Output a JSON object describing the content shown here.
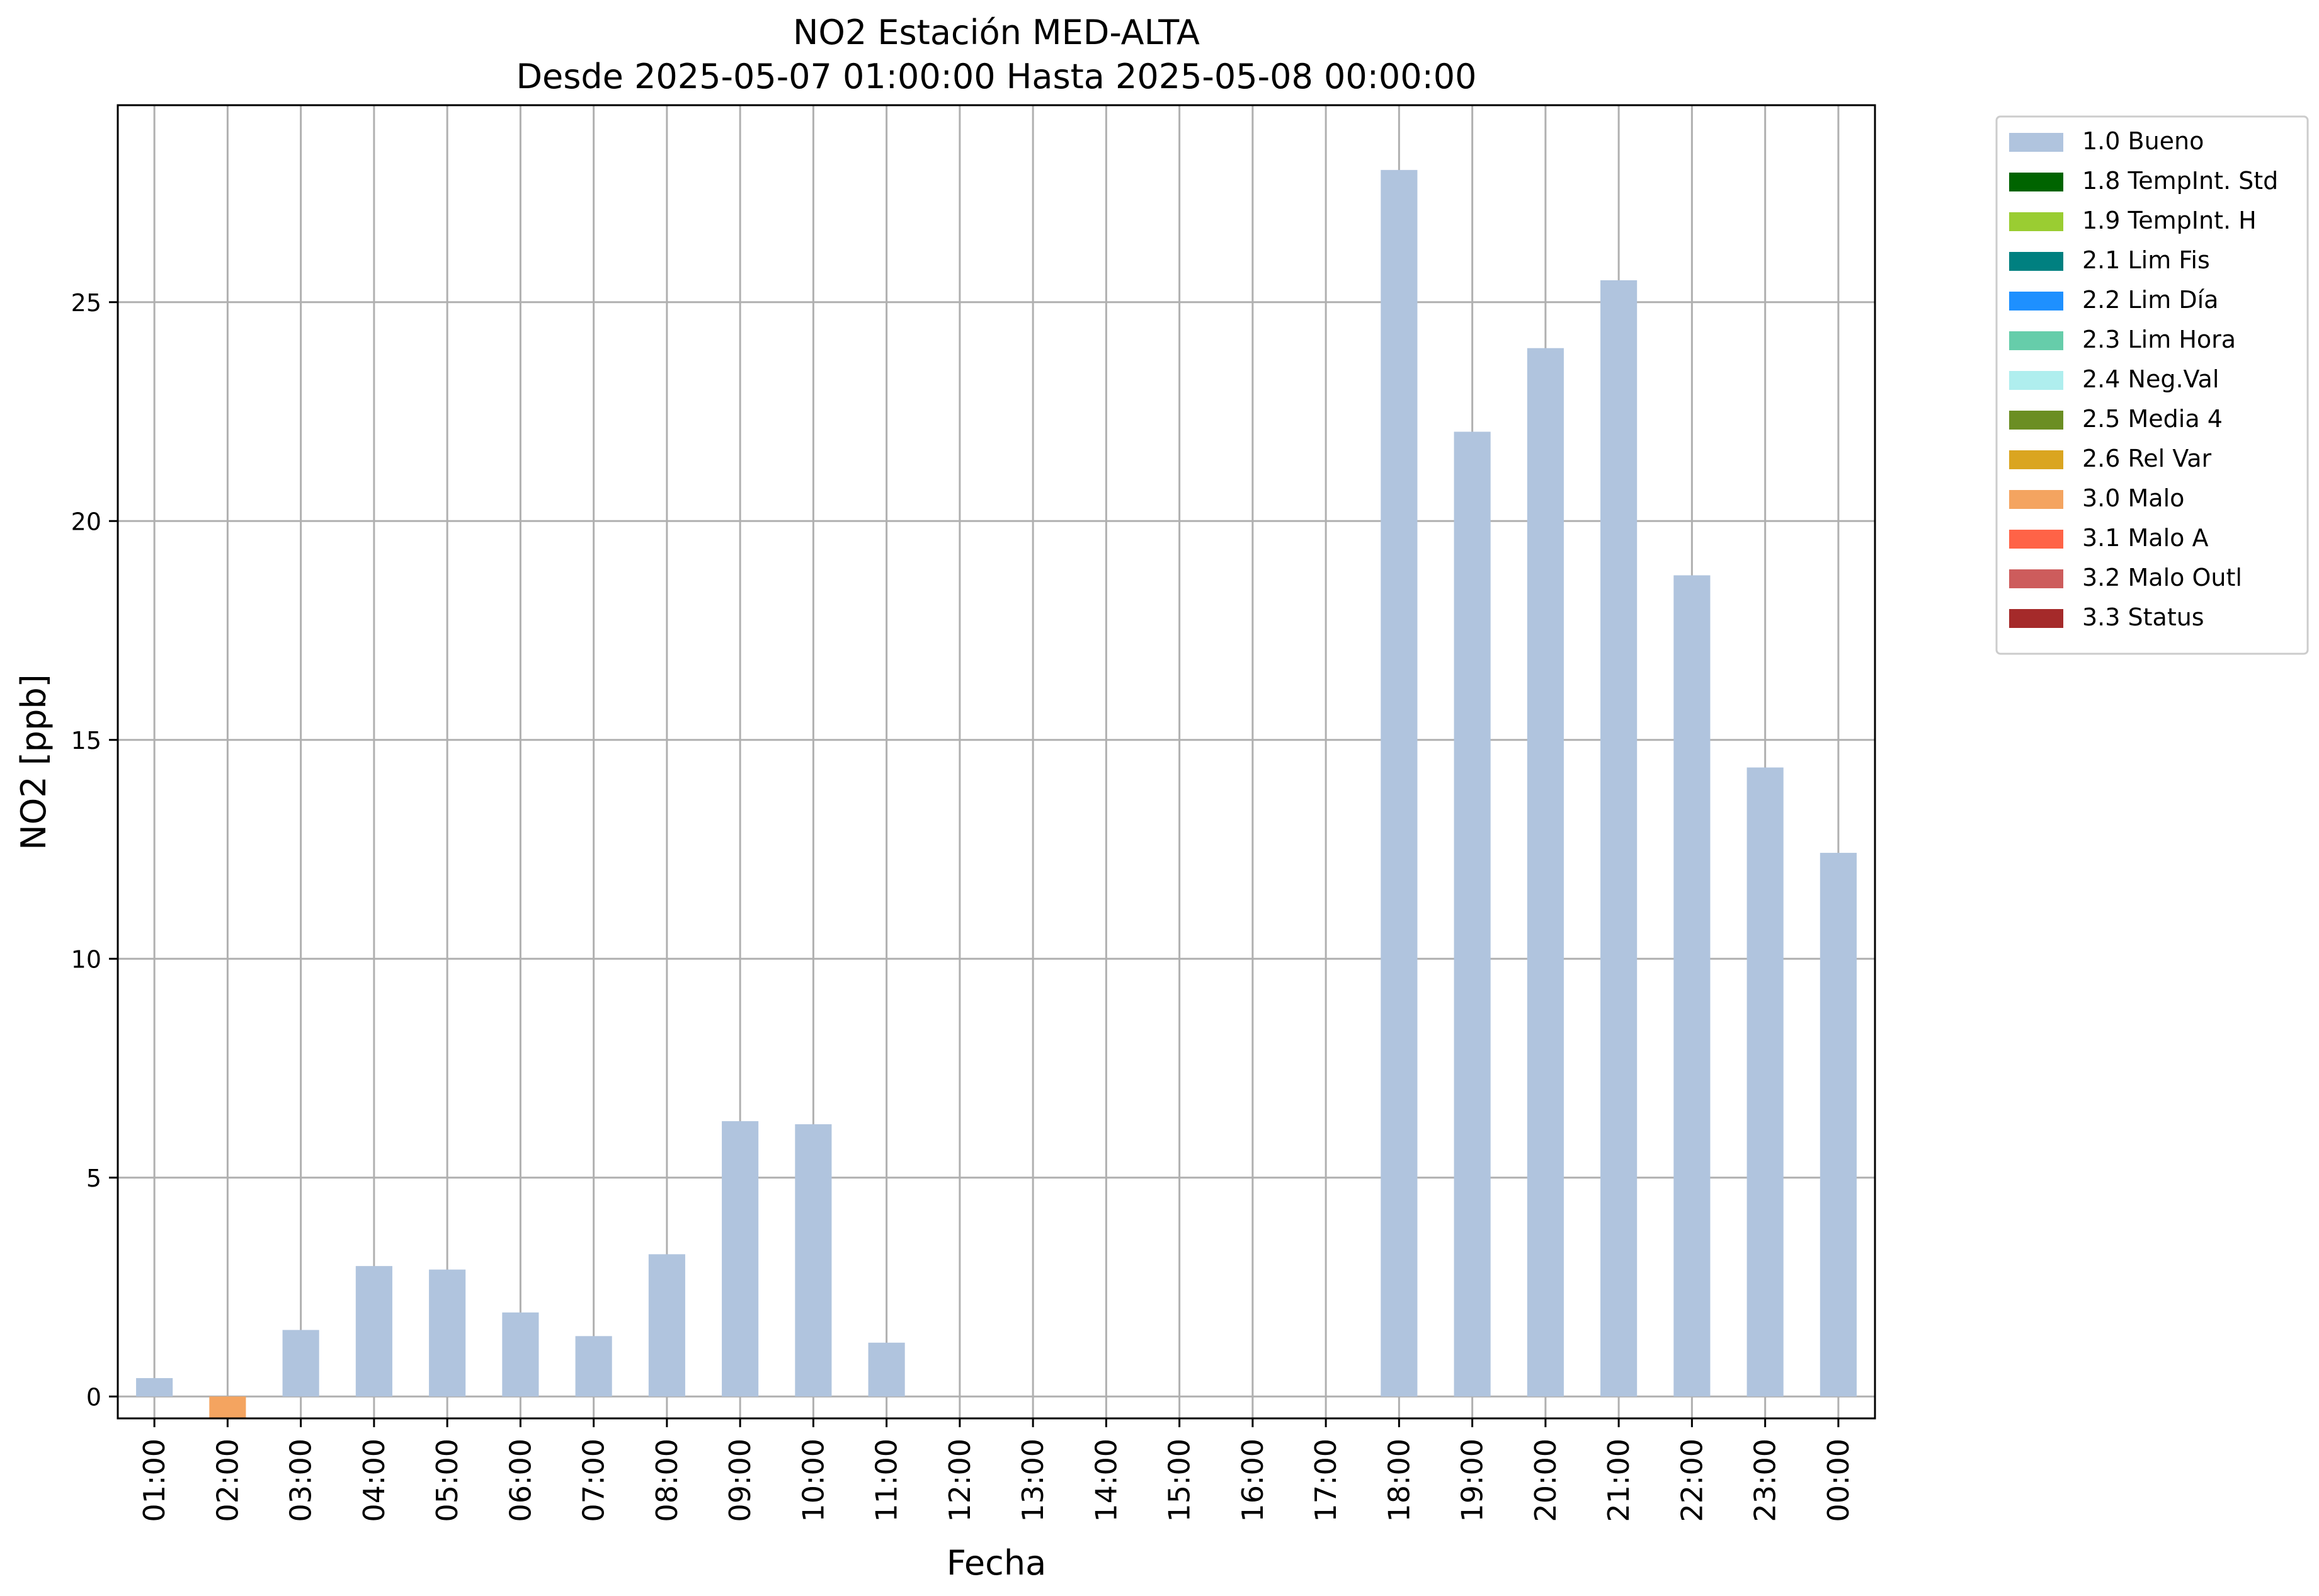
{
  "chart_data": {
    "type": "bar",
    "title": "NO2 Estación MED-ALTA",
    "subtitle": "Desde 2025-05-07 01:00:00 Hasta 2025-05-08 00:00:00",
    "xlabel": "Fecha",
    "ylabel": "NO2 [ppb]",
    "ylim": [
      -0.5,
      29.5
    ],
    "yticks": [
      0,
      5,
      10,
      15,
      20,
      25
    ],
    "grid": true,
    "legend_position": "outside-top-right",
    "categories": [
      "01:00",
      "02:00",
      "03:00",
      "04:00",
      "05:00",
      "06:00",
      "07:00",
      "08:00",
      "09:00",
      "10:00",
      "11:00",
      "12:00",
      "13:00",
      "14:00",
      "15:00",
      "16:00",
      "17:00",
      "18:00",
      "19:00",
      "20:00",
      "21:00",
      "22:00",
      "23:00",
      "00:00"
    ],
    "values": [
      0.42,
      -0.5,
      1.52,
      2.98,
      2.9,
      1.92,
      1.38,
      3.25,
      6.29,
      6.22,
      1.23,
      null,
      null,
      null,
      null,
      null,
      null,
      28.02,
      22.04,
      23.95,
      25.5,
      18.76,
      14.37,
      12.42
    ],
    "flags": [
      "1.0 Bueno",
      "3.0 Malo",
      "1.0 Bueno",
      "1.0 Bueno",
      "1.0 Bueno",
      "1.0 Bueno",
      "1.0 Bueno",
      "1.0 Bueno",
      "1.0 Bueno",
      "1.0 Bueno",
      "1.0 Bueno",
      null,
      null,
      null,
      null,
      null,
      null,
      "1.0 Bueno",
      "1.0 Bueno",
      "1.0 Bueno",
      "1.0 Bueno",
      "1.0 Bueno",
      "1.0 Bueno",
      "1.0 Bueno"
    ],
    "legend": [
      {
        "label": "1.0 Bueno",
        "color": "#b0c4de"
      },
      {
        "label": "1.8 TempInt. Std",
        "color": "#006400"
      },
      {
        "label": "1.9 TempInt. H",
        "color": "#9acd32"
      },
      {
        "label": "2.1 Lim Fis",
        "color": "#008080"
      },
      {
        "label": "2.2 Lim Día",
        "color": "#1e90ff"
      },
      {
        "label": "2.3 Lim Hora",
        "color": "#66cdaa"
      },
      {
        "label": "2.4 Neg.Val",
        "color": "#afeeee"
      },
      {
        "label": "2.5 Media 4",
        "color": "#6b8e23"
      },
      {
        "label": "2.6 Rel Var",
        "color": "#daa520"
      },
      {
        "label": "3.0 Malo",
        "color": "#f4a460"
      },
      {
        "label": "3.1 Malo A",
        "color": "#ff6347"
      },
      {
        "label": "3.2 Malo Outl",
        "color": "#cd5c5c"
      },
      {
        "label": "3.3 Status",
        "color": "#a52a2a"
      }
    ]
  }
}
